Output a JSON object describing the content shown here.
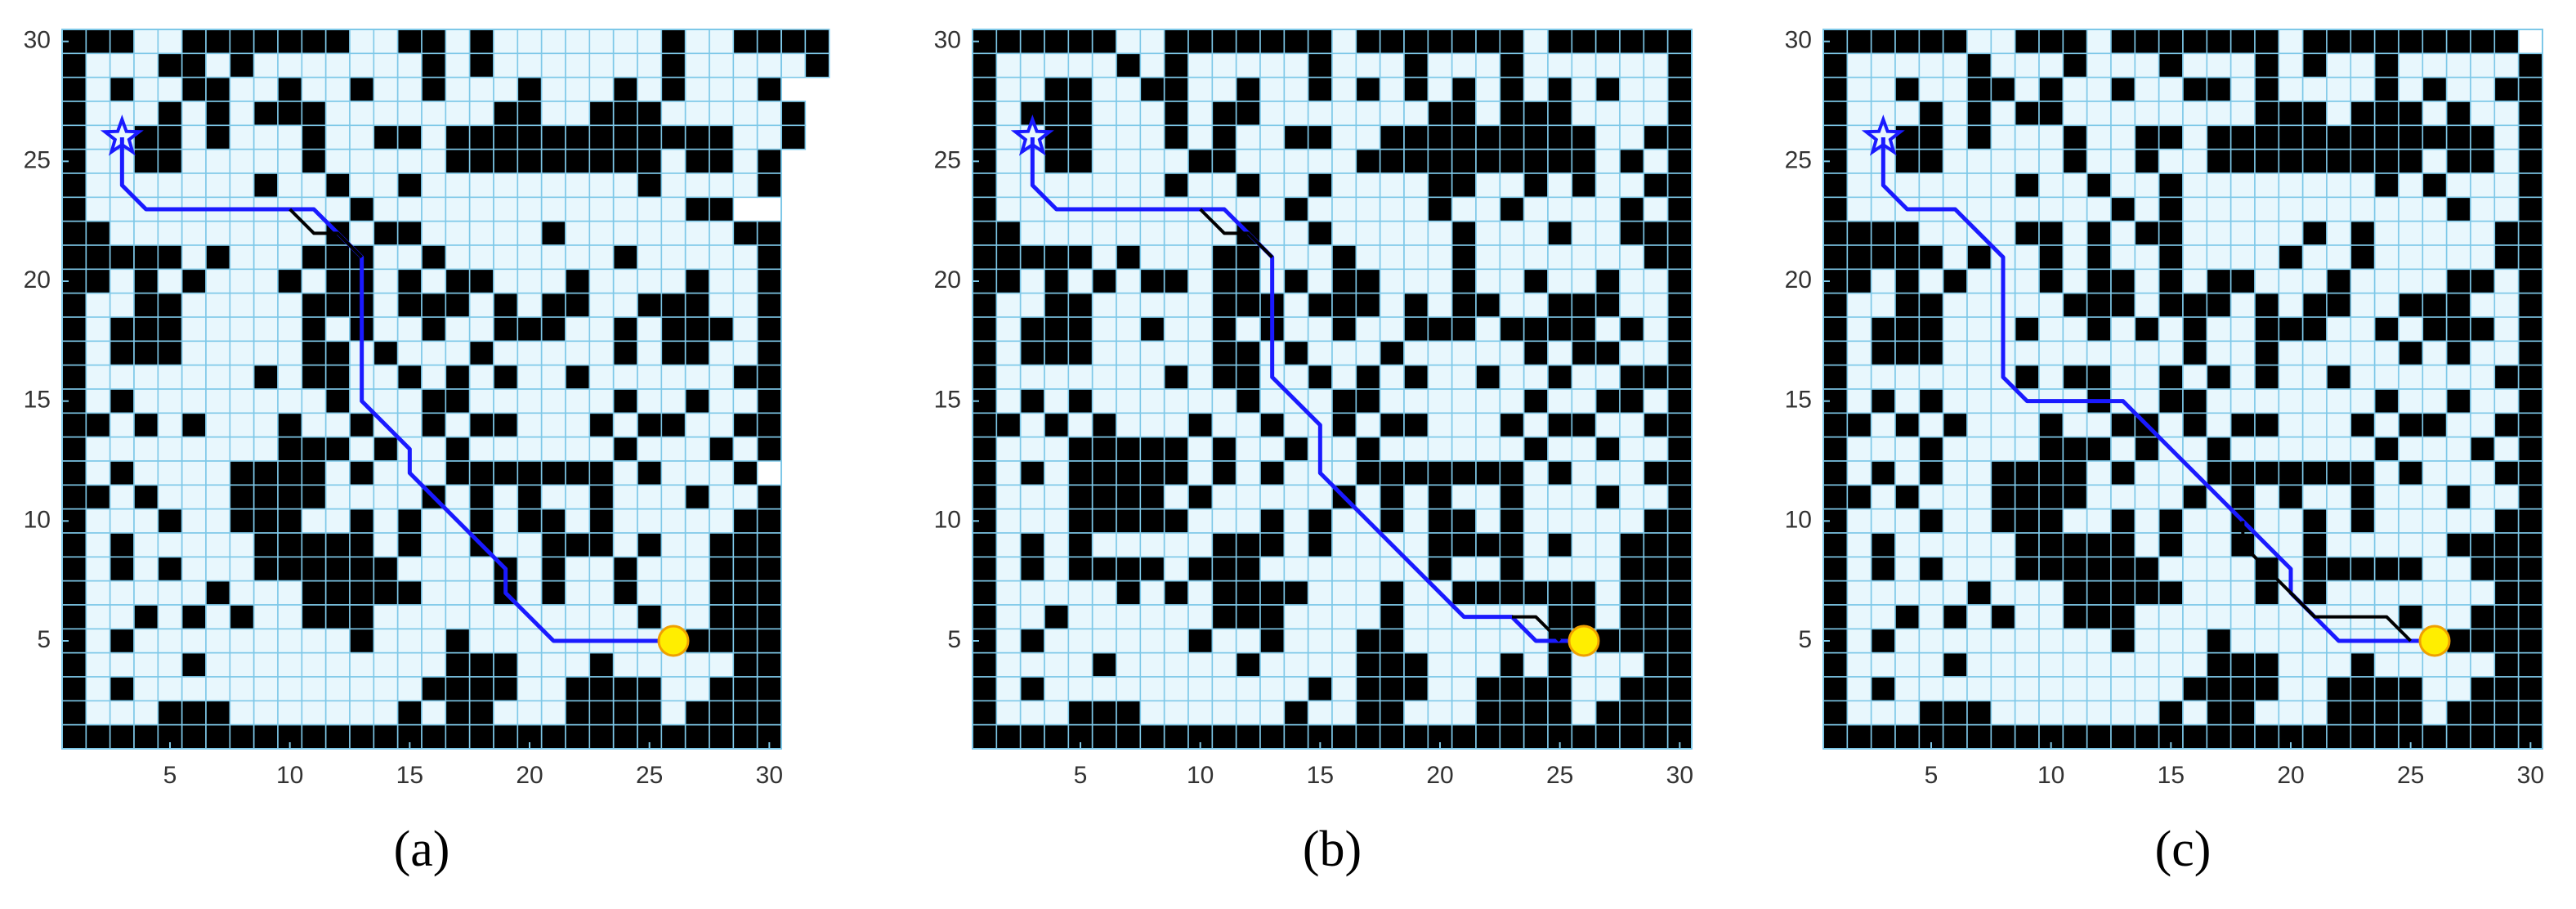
{
  "chart_data": [
    {
      "type": "gridmap",
      "caption": "(a)",
      "xlim": [
        0.5,
        30.5
      ],
      "ylim": [
        0.5,
        30.5
      ],
      "xticks": [
        5,
        10,
        15,
        20,
        25,
        30
      ],
      "yticks": [
        5,
        10,
        15,
        20,
        25,
        30
      ],
      "obstacle_color": "#000000",
      "free_color": "#e8f7fd",
      "grid_color": "#7ec8e8",
      "grid": [
        "###..#######..##.#.......#..####",
        "#...##.#.......#.#.......#.....#",
        "#.#..##..#..#..#...#...#.#...#",
        "#...#.#.###.......##..###.....#",
        "#..##.#...#..##.############..#",
        "#..##.....#.....#########.##.#",
        "#.......#..#..#.........#....#",
        "#...........#.............##",
        "##.........#.##.....#.......##",
        "#####.#...###..#.......#.....#",
        "##.#.#...#.##.#.##...#....#..#",
        "#..##.....###.###.#.##..###..#",
        "#.###.....#.#..#..###..#.###.#",
        "#.###.....##.#...#.....#.##..#",
        "#.......#.##..#.#.#..#......##",
        "#.#........#...##......#..#..#",
        "##.#.#...#..#..#.##...#.##..##",
        "#........###.#..#......#...#.#",
        "#.#....####.#...#######.#...#",
        "##.#...####....#.#.#..#...#..#",
        "#...#..###..#.#..#.##.#.....##",
        "#.#.....#####.#..#..###.#..###",
        "#.#.#...######....#.#..#...###",
        "#.....#...#####...#.#..#...###",
        "#..#.#.#..###...........#..###",
        "#.#.........#...#.........####",
        "#....#..........###...#.....##",
        "#.#............####..####..###",
        "#...###.......#.##...####.####",
        "##############################"
      ],
      "start": [
        3,
        26
      ],
      "goal": [
        26,
        5
      ],
      "series": [
        {
          "color": "#1a1aff",
          "x": [
            3,
            3,
            4,
            11,
            13,
            13,
            15,
            15,
            19,
            19,
            21,
            26
          ],
          "y": [
            26,
            24,
            23,
            23,
            21,
            15,
            13,
            12,
            8,
            7,
            5,
            5
          ]
        },
        {
          "color": "#000000",
          "x": [
            10,
            11,
            12,
            13
          ],
          "y": [
            23,
            22,
            22,
            21
          ]
        }
      ]
    },
    {
      "type": "gridmap",
      "caption": "(b)",
      "xlim": [
        0.5,
        30.5
      ],
      "ylim": [
        0.5,
        30.5
      ],
      "xticks": [
        5,
        10,
        15,
        20,
        25,
        30
      ],
      "yticks": [
        5,
        10,
        15,
        20,
        25,
        30
      ],
      "obstacle_color": "#000000",
      "free_color": "#e8f7fd",
      "grid_color": "#7ec8e8",
      "grid": [
        "######..#######.#######.######",
        "#.....#.#.....#...#...#......#",
        "#..##..##..#..#.#.#.#.#.#.#..#",
        "#.###...#.##.......##.###....#",
        "#..##...#.#..##..#########..##",
        "#..##....##.....##########.#.#",
        "#.......#..#..#....##..#.#..##",
        "#............#.....#..#....#.#",
        "##.........#..#.....#...#..###",
        "#####.#...##...#....#.......##",
        "##.#.#.##.##.#.##...#..#..#..#",
        "#..##.....###.###.#.##..###..#",
        "#.###..#..#.#..#..###.####.#.#",
        "#.###.....##.#...#.....#.##..#",
        "#.......#.##..#.#.#..#..#..###",
        "#.#.#......#...##......#..##.#",
        "##.#.#...#..#..#.##...#.##..##",
        "#...#####.#..#..#......#..#..#",
        "#.#.#####.#.#...#######.#...##",
        "#...####.#.....#.#.#..#...#..#",
        "#...#####...#.#..#.##.#.....##",
        "#.#.#.....###.#....####.#..###",
        "#.#.####.###.......#..#....###",
        "#.....#.#.####...#..######.###",
        "#..#......###....#......##.###",
        "#.#......#..#...##......#.####",
        "#....#.....#....###...#.#...##",
        "#.#...........#.###..####..###",
        "#...###......#..##...####.####",
        "##############################"
      ],
      "start": [
        3,
        26
      ],
      "goal": [
        26,
        5
      ],
      "series": [
        {
          "color": "#1a1aff",
          "x": [
            3,
            3,
            4,
            11,
            13,
            13,
            15,
            15,
            21,
            23,
            24,
            26
          ],
          "y": [
            26,
            24,
            23,
            23,
            21,
            16,
            14,
            12,
            6,
            6,
            5,
            5
          ]
        },
        {
          "color": "#000000",
          "x": [
            10,
            11,
            12,
            13
          ],
          "y": [
            23,
            22,
            22,
            21
          ]
        },
        {
          "color": "#000000",
          "x": [
            23,
            24,
            25
          ],
          "y": [
            6,
            6,
            5
          ]
        }
      ]
    },
    {
      "type": "gridmap",
      "caption": "(c)",
      "xlim": [
        0.5,
        30.5
      ],
      "ylim": [
        0.5,
        30.5
      ],
      "xticks": [
        5,
        10,
        15,
        20,
        25,
        30
      ],
      "yticks": [
        5,
        10,
        15,
        20,
        25,
        30
      ],
      "obstacle_color": "#000000",
      "free_color": "#e8f7fd",
      "grid_color": "#7ec8e8",
      "grid": [
        "######..###.#######.#########",
        "#.....#...#...#...#.#..#.....#",
        "#..#..##.#..#..##.#....#.#..##",
        "#...#.#.##........###.###.#..#",
        "#..##.#...#..##.############.#",
        "#..##.....#..#..#########.##.#",
        "#.......#..#..#........#.#...#",
        "#...........#.#...........#..#",
        "####....##.#.##.....#.#.....##",
        "#####.#..#.#..#....#..#.....##",
        "##.#.#...#.##.#.##...#....##.#",
        "#..##.....###.###.#.##..###..#",
        "#.###...#..#.#.#..###..#.###.#",
        "#.###..........#..#.....#.#..#",
        "#.......#.##..#.#.#..#......##",
        "#.#.#......#..##.......#..#..#",
        "##.#.#...#..##.#.##...#.##..##",
        "#...#....###.#..#......#...#.#",
        "#.#.#..####.#...#######.#...##",
        "##.#...####....#.#.#..#...#..#",
        "#...#..###..#.#..#..#.#.....##",
        "#.#.....#####.#..#..#.....####",
        "#.#.#...######....#.#####..###",
        "#.....#...#####...#.#.......##",
        "#..#.#.#..###...........#..###",
        "#.#.........#...#.........####",
        "#....#..........###...#.....##",
        "#.#............####..####..###",
        "#...###.......#.##...####.####",
        "##############################"
      ],
      "start": [
        3,
        26
      ],
      "goal": [
        26,
        5
      ],
      "series": [
        {
          "color": "#1a1aff",
          "x": [
            3,
            3,
            4,
            6,
            8,
            8,
            9,
            13,
            20,
            20,
            22,
            26
          ],
          "y": [
            26,
            24,
            23,
            23,
            21,
            16,
            15,
            15,
            8,
            7,
            5,
            5
          ]
        },
        {
          "color": "#000000",
          "x": [
            18,
            18,
            20,
            21,
            24,
            25
          ],
          "y": [
            10,
            9,
            7,
            6,
            6,
            5
          ]
        }
      ]
    }
  ]
}
